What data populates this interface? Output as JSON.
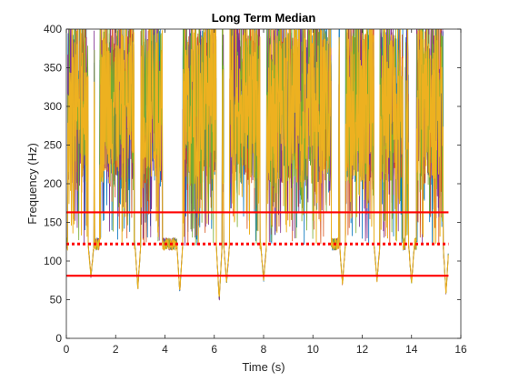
{
  "chart_data": {
    "type": "line",
    "title": "Long Term Median",
    "xlabel": "Time (s)",
    "ylabel": "Frequency (Hz)",
    "xlim": [
      0,
      16
    ],
    "ylim": [
      0,
      400
    ],
    "xticks": [
      0,
      2,
      4,
      6,
      8,
      10,
      12,
      14,
      16
    ],
    "yticks": [
      0,
      50,
      100,
      150,
      200,
      250,
      300,
      350,
      400
    ],
    "grid": false,
    "legend": "none",
    "signal_end_s": 15.5,
    "series_colors": [
      "#0072BD",
      "#D95319",
      "#7E2F8E",
      "#77AC30",
      "#EDB120"
    ],
    "reference_lines": [
      {
        "style": "solid",
        "y": 163,
        "color": "#FF0000"
      },
      {
        "style": "dotted",
        "y": 122,
        "color": "#FF0000"
      },
      {
        "style": "solid",
        "y": 81,
        "color": "#FF0000"
      }
    ],
    "high_regions_s": [
      [
        0.05,
        1.15
      ],
      [
        1.35,
        2.75
      ],
      [
        3.0,
        3.9
      ],
      [
        4.55,
        6.1
      ],
      [
        6.25,
        7.85
      ],
      [
        8.0,
        10.75
      ],
      [
        11.05,
        12.5
      ],
      [
        12.65,
        13.65
      ],
      [
        13.75,
        14.0
      ],
      [
        14.2,
        15.5
      ]
    ],
    "low_band_median_hz": 122,
    "dip_minima": [
      {
        "x": 1.0,
        "y": 80
      },
      {
        "x": 2.9,
        "y": 65
      },
      {
        "x": 4.6,
        "y": 60
      },
      {
        "x": 6.2,
        "y": 50
      },
      {
        "x": 6.5,
        "y": 72
      },
      {
        "x": 8.0,
        "y": 75
      },
      {
        "x": 11.2,
        "y": 70
      },
      {
        "x": 12.6,
        "y": 75
      },
      {
        "x": 14.0,
        "y": 72
      },
      {
        "x": 15.4,
        "y": 58
      }
    ]
  }
}
